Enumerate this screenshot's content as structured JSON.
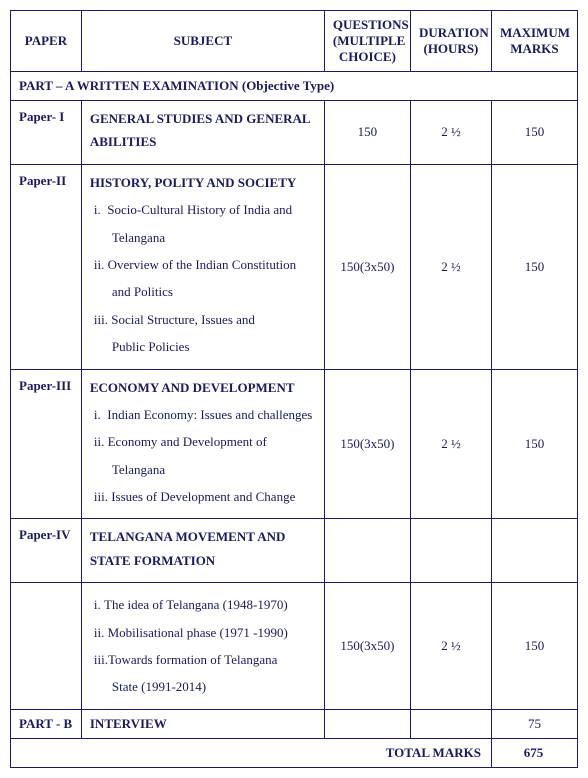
{
  "headers": {
    "paper": "PAPER",
    "subject": "SUBJECT",
    "questions": "QUESTIONS (MULTIPLE CHOICE)",
    "duration": "DURATION (HOURS)",
    "marks": "MAXIMUM MARKS"
  },
  "partA": {
    "label": "PART – A WRITTEN  EXAMINATION (Objective Type)"
  },
  "papers": [
    {
      "id": "Paper- I",
      "title": "GENERAL STUDIES AND GENERAL ABILITIES",
      "items": [],
      "questions": "150",
      "duration": "2 ½",
      "marks": "150"
    },
    {
      "id": "Paper-II",
      "title": "HISTORY, POLITY  AND SOCIETY",
      "items": [
        {
          "num": "i.",
          "text": "Socio-Cultural History of  India and",
          "cont": "Telangana"
        },
        {
          "num": "ii.",
          "text": "Overview of the Indian Constitution",
          "cont": "and Politics"
        },
        {
          "num": "iii.",
          "text": "Social Structure, Issues and",
          "cont": "Public Policies"
        }
      ],
      "questions": "150(3x50)",
      "duration": "2 ½",
      "marks": "150"
    },
    {
      "id": "Paper-III",
      "title": "ECONOMY AND DEVELOPMENT",
      "items": [
        {
          "num": "i.",
          "text": "Indian Economy: Issues and challenges",
          "cont": ""
        },
        {
          "num": "ii.",
          "text": "Economy and Development of",
          "cont": "Telangana"
        },
        {
          "num": "iii.",
          "text": "Issues of Development and Change",
          "cont": ""
        }
      ],
      "questions": "150(3x50)",
      "duration": "2 ½",
      "marks": "150"
    }
  ],
  "paper4": {
    "id": "Paper-IV",
    "title": "TELANGANA MOVEMENT AND STATE FORMATION",
    "items": [
      {
        "num": "i.",
        "text": "The idea of Telangana (1948-1970)",
        "cont": ""
      },
      {
        "num": "ii.",
        "text": "Mobilisational phase  (1971 -1990)",
        "cont": ""
      },
      {
        "num": "iii.",
        "text": "Towards formation of Telangana",
        "cont": "State (1991-2014)"
      }
    ],
    "questions": "150(3x50)",
    "duration": "2 ½",
    "marks": "150"
  },
  "partB": {
    "label": "PART - B",
    "subject": "INTERVIEW",
    "marks": "75"
  },
  "total": {
    "label": "TOTAL MARKS",
    "value": "675"
  }
}
